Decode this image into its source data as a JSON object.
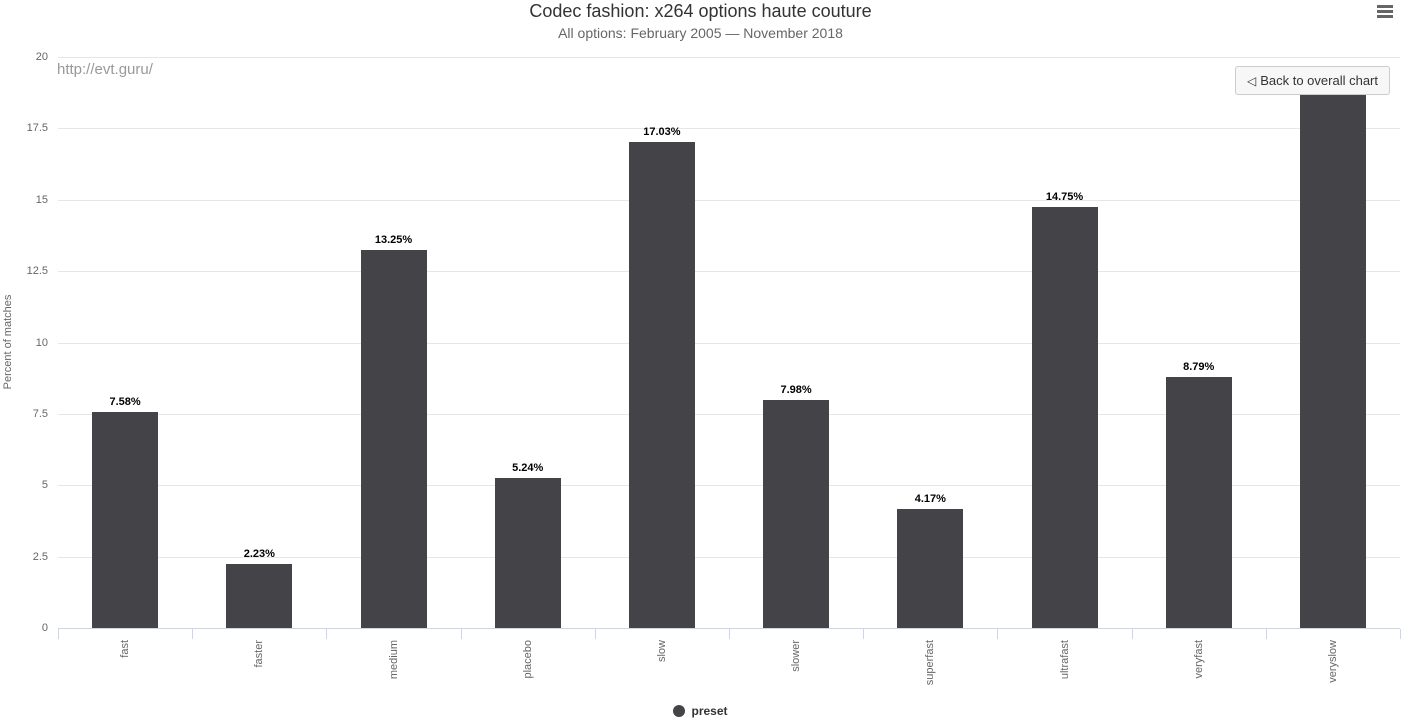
{
  "header": {
    "title": "Codec fashion: x264 options haute couture",
    "subtitle": "All options: February 2005 — November 2018"
  },
  "watermark": "http://evt.guru/",
  "back_button": {
    "icon": "◁",
    "label": "Back to overall chart"
  },
  "legend": {
    "label": "preset",
    "marker_color": "#434348"
  },
  "chart_data": {
    "type": "bar",
    "title": "Codec fashion: x264 options haute couture",
    "subtitle": "All options: February 2005 — November 2018",
    "series_name": "preset",
    "categories": [
      "fast",
      "faster",
      "medium",
      "placebo",
      "slow",
      "slower",
      "superfast",
      "ultrafast",
      "veryfast",
      "veryslow"
    ],
    "values": [
      7.58,
      2.23,
      13.25,
      5.24,
      17.03,
      7.98,
      4.17,
      14.75,
      8.79,
      18.98
    ],
    "data_labels": [
      "7.58%",
      "2.23%",
      "13.25%",
      "5.24%",
      "17.03%",
      "7.98%",
      "4.17%",
      "14.75%",
      "8.79%",
      ""
    ],
    "xlabel": "",
    "ylabel": "Percent of matches",
    "ylim": [
      0,
      20
    ],
    "ytick_step": 2.5,
    "yticks": [
      "20",
      "17.5",
      "15",
      "12.5",
      "10",
      "7.5",
      "5",
      "2.5",
      "0"
    ],
    "grid": true,
    "legend_position": "bottom-center",
    "bar_color": "#434348",
    "grid_color": "#e6e6e6",
    "axis_color": "#ccd6eb"
  }
}
